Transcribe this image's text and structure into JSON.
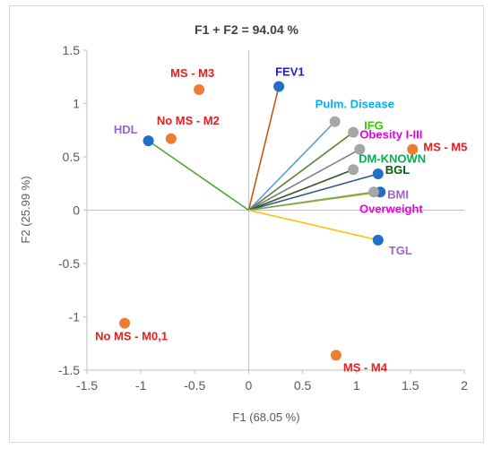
{
  "chart_data": {
    "type": "scatter",
    "title": "F1 + F2 = 94.04 %",
    "xlabel": "F1 (68.05 %)",
    "ylabel": "F2 (25.99 %)",
    "xlim": [
      -1.5,
      2
    ],
    "ylim": [
      -1.5,
      1.5
    ],
    "x_ticks": [
      "-1.5",
      "-1",
      "-0.5",
      "0",
      "0.5",
      "1",
      "1.5",
      "2"
    ],
    "y_ticks": [
      "-1.5",
      "-1",
      "-0.5",
      "0",
      "0.5",
      "1",
      "1.5"
    ],
    "grid": false,
    "variables": [
      {
        "label": "FEV1",
        "x": 0.28,
        "y": 1.16,
        "line_color": "#c55a11",
        "marker_color": "#1f6fc5",
        "label_color": "#1f1fcc"
      },
      {
        "label": "HDL",
        "x": -0.93,
        "y": 0.65,
        "line_color": "#4ea72e",
        "marker_color": "#1f6fc5",
        "label_color": "#9966cc"
      },
      {
        "label": "Pulm. Disease",
        "x": 0.8,
        "y": 0.83,
        "line_color": "#5b9bd5",
        "marker_color": "#a6a6a6",
        "label_color": "#00b0f0"
      },
      {
        "label": "IFG",
        "x": 0.97,
        "y": 0.73,
        "line_color": "#548235",
        "marker_color": "#a6a6a6",
        "label_color": "#33cc00"
      },
      {
        "label": "Obesity I-III",
        "x": 1.03,
        "y": 0.57,
        "line_color": "#7f7f7f",
        "marker_color": "#a6a6a6",
        "label_color": "#e600e6"
      },
      {
        "label": "DM-KNOWN",
        "x": 0.97,
        "y": 0.38,
        "line_color": "#375623",
        "marker_color": "#a6a6a6",
        "label_color": "#00b050"
      },
      {
        "label": "BGL",
        "x": 1.2,
        "y": 0.34,
        "line_color": "#2e5a87",
        "marker_color": "#1f6fc5",
        "label_color": "#006100"
      },
      {
        "label": "BMI",
        "x": 1.22,
        "y": 0.17,
        "line_color": "#c9a227",
        "marker_color": "#1f6fc5",
        "label_color": "#9966cc"
      },
      {
        "label": "Overweight",
        "x": 1.16,
        "y": 0.17,
        "line_color": "#70ad47",
        "marker_color": "#a6a6a6",
        "label_color": "#e600e6"
      },
      {
        "label": "TGL",
        "x": 1.2,
        "y": -0.28,
        "line_color": "#ffc000",
        "marker_color": "#1f6fc5",
        "label_color": "#9966cc"
      }
    ],
    "observations": [
      {
        "label": "MS - M3",
        "x": -0.46,
        "y": 1.13,
        "marker_color": "#ed7d31",
        "label_color": "#e61e1e"
      },
      {
        "label": "No MS - M2",
        "x": -0.72,
        "y": 0.67,
        "marker_color": "#ed7d31",
        "label_color": "#e61e1e"
      },
      {
        "label": "MS - M5",
        "x": 1.52,
        "y": 0.57,
        "marker_color": "#ed7d31",
        "label_color": "#e61e1e"
      },
      {
        "label": "No MS - M0,1",
        "x": -1.15,
        "y": -1.06,
        "marker_color": "#ed7d31",
        "label_color": "#e61e1e"
      },
      {
        "label": "MS - M4",
        "x": 0.81,
        "y": -1.36,
        "marker_color": "#ed7d31",
        "label_color": "#e61e1e"
      }
    ]
  }
}
